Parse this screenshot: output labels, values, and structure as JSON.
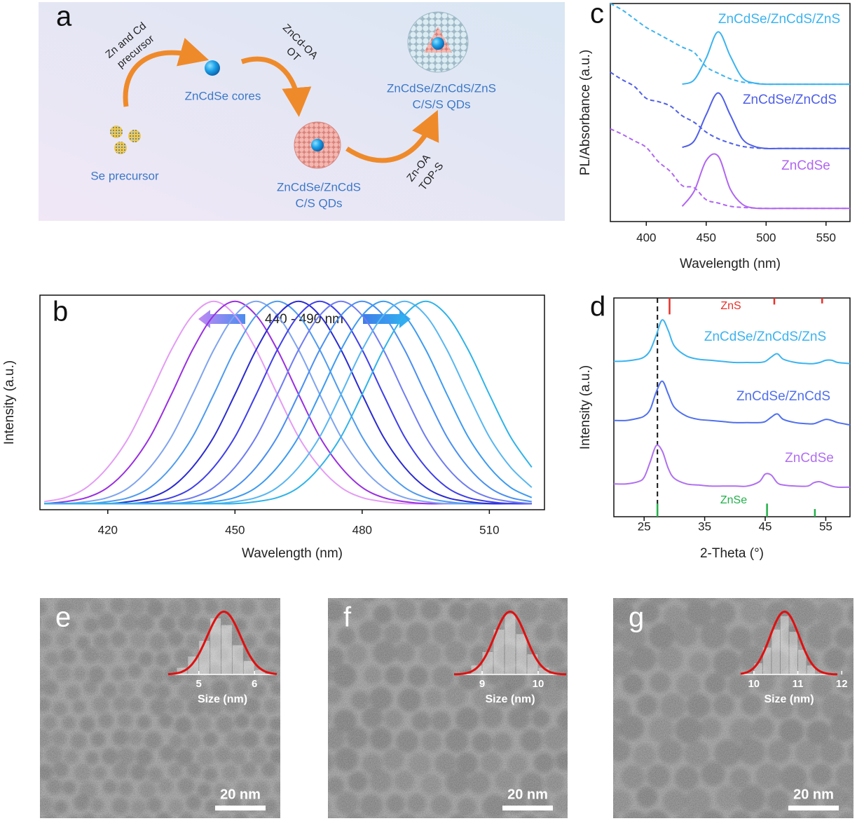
{
  "scheme": {
    "label": "a",
    "reagents": [
      [
        "Zn and Cd",
        "precursor"
      ],
      [
        "ZnCd-OA",
        "OT"
      ],
      [
        "Zn-OA",
        "TOP-S"
      ]
    ],
    "products": [
      [
        "Se precursor"
      ],
      [
        "ZnCdSe cores"
      ],
      [
        "ZnCdSe/ZnCdS",
        "C/S QDs"
      ],
      [
        "ZnCdSe/ZnCdS/ZnS",
        "C/S/S QDs"
      ]
    ]
  },
  "chart_data": [
    {
      "type": "line",
      "label": "b",
      "annotation": "440 - 490 nm",
      "xlabel": "Wavelength (nm)",
      "ylabel": "Intensity (a.u.)",
      "x": [
        405,
        410,
        415,
        420,
        425,
        430,
        435,
        440,
        445,
        450,
        455,
        460,
        465,
        470,
        475,
        480,
        485,
        490,
        495,
        500,
        505,
        510,
        515,
        520
      ],
      "xlim": [
        404,
        523
      ],
      "xticks": [
        420,
        450,
        480,
        510
      ],
      "ylim": [
        -0.03,
        1.03
      ],
      "series": [
        {
          "color": "#e49cf4",
          "values": [
            0.01,
            0.03,
            0.08,
            0.18,
            0.33,
            0.54,
            0.76,
            0.93,
            1,
            0.93,
            0.76,
            0.54,
            0.33,
            0.18,
            0.08,
            0.03,
            0.01,
            0,
            0,
            0,
            0,
            0,
            0,
            0
          ]
        },
        {
          "color": "#9a2fe0",
          "values": [
            0,
            0.01,
            0.03,
            0.08,
            0.18,
            0.33,
            0.54,
            0.76,
            0.93,
            1,
            0.93,
            0.76,
            0.54,
            0.33,
            0.18,
            0.08,
            0.03,
            0.01,
            0,
            0,
            0,
            0,
            0,
            0
          ]
        },
        {
          "color": "#7fa4ee",
          "values": [
            0,
            0,
            0.01,
            0.03,
            0.08,
            0.18,
            0.33,
            0.54,
            0.76,
            0.93,
            1,
            0.93,
            0.76,
            0.54,
            0.33,
            0.18,
            0.08,
            0.03,
            0.01,
            0,
            0,
            0,
            0,
            0
          ]
        },
        {
          "color": "#4f9bee",
          "values": [
            0,
            0,
            0,
            0.01,
            0.03,
            0.08,
            0.18,
            0.33,
            0.54,
            0.76,
            0.93,
            1,
            0.93,
            0.76,
            0.54,
            0.33,
            0.18,
            0.08,
            0.03,
            0.01,
            0,
            0,
            0,
            0
          ]
        },
        {
          "color": "#2b2bd0",
          "values": [
            0,
            0,
            0,
            0,
            0.01,
            0.03,
            0.08,
            0.18,
            0.33,
            0.54,
            0.76,
            0.93,
            1,
            0.93,
            0.76,
            0.54,
            0.33,
            0.18,
            0.08,
            0.03,
            0.01,
            0,
            0,
            0
          ]
        },
        {
          "color": "#3f3fe8",
          "values": [
            0,
            0,
            0,
            0,
            0,
            0.01,
            0.03,
            0.08,
            0.18,
            0.33,
            0.54,
            0.76,
            0.93,
            1,
            0.93,
            0.76,
            0.54,
            0.33,
            0.18,
            0.08,
            0.03,
            0.01,
            0,
            0
          ]
        },
        {
          "color": "#6e7cf0",
          "values": [
            0,
            0,
            0,
            0,
            0,
            0,
            0.01,
            0.03,
            0.08,
            0.18,
            0.33,
            0.54,
            0.76,
            0.93,
            1,
            0.93,
            0.76,
            0.54,
            0.33,
            0.18,
            0.08,
            0.03,
            0.01,
            0
          ]
        },
        {
          "color": "#4a8ff0",
          "values": [
            0,
            0,
            0,
            0,
            0,
            0,
            0,
            0.01,
            0.03,
            0.08,
            0.18,
            0.33,
            0.54,
            0.76,
            0.93,
            1,
            0.93,
            0.76,
            0.54,
            0.33,
            0.18,
            0.08,
            0.03,
            0.01
          ]
        },
        {
          "color": "#3d9bf0",
          "values": [
            0,
            0,
            0,
            0,
            0,
            0,
            0,
            0,
            0.01,
            0.03,
            0.08,
            0.18,
            0.33,
            0.54,
            0.76,
            0.93,
            1,
            0.93,
            0.76,
            0.54,
            0.33,
            0.18,
            0.08,
            0.03
          ]
        },
        {
          "color": "#58b6f0",
          "values": [
            0,
            0,
            0,
            0,
            0,
            0,
            0,
            0,
            0,
            0.01,
            0.03,
            0.08,
            0.18,
            0.33,
            0.54,
            0.76,
            0.93,
            1,
            0.93,
            0.76,
            0.54,
            0.33,
            0.18,
            0.08
          ]
        },
        {
          "color": "#2fb3e8",
          "values": [
            0,
            0,
            0,
            0,
            0,
            0,
            0,
            0,
            0,
            0,
            0.01,
            0.03,
            0.08,
            0.18,
            0.33,
            0.54,
            0.76,
            0.93,
            1,
            0.93,
            0.76,
            0.54,
            0.33,
            0.18
          ]
        }
      ]
    },
    {
      "type": "line",
      "label": "c",
      "xlabel": "Wavelength (nm)",
      "ylabel": "PL/Absorbance (a.u.)",
      "x": [
        370,
        380,
        390,
        400,
        410,
        420,
        430,
        440,
        450,
        460,
        470,
        480,
        490,
        500,
        510,
        520,
        530,
        540,
        550,
        560,
        570
      ],
      "xlim": [
        370,
        570
      ],
      "xticks": [
        400,
        450,
        500,
        550
      ],
      "ylim": [
        0,
        10
      ],
      "series": [
        {
          "name": "ZnCdSe/ZnCdS/ZnS",
          "color": "#3cb4ef",
          "values": [
            null,
            null,
            null,
            null,
            null,
            null,
            6.3,
            6.5,
            7.5,
            8.7,
            7.6,
            6.6,
            6.35,
            6.3,
            6.3,
            6.3,
            6.3,
            6.3,
            6.3,
            6.3,
            6.3
          ],
          "absorbance": [
            10,
            9.7,
            9.3,
            8.9,
            8.6,
            8.3,
            8.0,
            7.75,
            7.1,
            6.8,
            6.55,
            6.4,
            6.35,
            6.3,
            6.3,
            6.3,
            6.3,
            6.3,
            6.3,
            6.3,
            6.3
          ]
        },
        {
          "name": "ZnCdSe/ZnCdS",
          "color": "#5060e8",
          "values": [
            null,
            null,
            null,
            null,
            null,
            null,
            3.4,
            3.7,
            4.9,
            5.9,
            4.9,
            3.8,
            3.45,
            3.35,
            3.35,
            3.35,
            3.35,
            3.35,
            3.35,
            3.35,
            3.35
          ],
          "absorbance": [
            6.85,
            6.5,
            6.2,
            5.65,
            5.5,
            5.3,
            4.85,
            4.55,
            4.1,
            3.8,
            3.6,
            3.45,
            3.38,
            3.35,
            3.35,
            3.35,
            3.35,
            3.35,
            3.35,
            3.35,
            3.35
          ]
        },
        {
          "name": "ZnCdSe",
          "color": "#b066f0",
          "values": [
            null,
            null,
            null,
            null,
            null,
            null,
            0.7,
            1.4,
            2.8,
            3.0,
            1.5,
            0.8,
            0.62,
            0.6,
            0.6,
            0.6,
            0.6,
            0.6,
            0.6,
            0.6,
            0.6
          ],
          "absorbance": [
            4.25,
            4.0,
            3.7,
            3.4,
            2.75,
            2.3,
            1.65,
            1.55,
            1.0,
            0.85,
            0.7,
            0.65,
            0.62,
            0.6,
            0.6,
            0.6,
            0.6,
            0.6,
            0.6,
            0.6,
            0.6
          ]
        }
      ]
    },
    {
      "type": "line",
      "label": "d",
      "xlabel": "2-Theta (°)",
      "ylabel": "Intensity (a.u.)",
      "x": [
        20,
        22,
        24,
        25,
        26,
        27,
        28,
        29,
        30,
        32,
        34,
        36,
        38,
        40,
        42,
        44,
        45,
        46,
        47,
        48,
        50,
        52,
        53,
        54,
        55,
        56,
        57,
        59
      ],
      "xlim": [
        20,
        59
      ],
      "xticks": [
        25,
        35,
        45,
        55
      ],
      "ylim": [
        0,
        10
      ],
      "series": [
        {
          "name": "ZnCdSe/ZnCdS/ZnS",
          "color": "#3cb4ef",
          "values": [
            7.1,
            7.12,
            7.2,
            7.3,
            7.6,
            8.3,
            9.0,
            8.5,
            7.8,
            7.35,
            7.2,
            7.15,
            7.1,
            7.05,
            7.05,
            7.05,
            7.1,
            7.3,
            7.45,
            7.2,
            7.05,
            7.0,
            7.0,
            7.05,
            7.15,
            7.15,
            7.05,
            7.0
          ]
        },
        {
          "name": "ZnCdSe/ZnCdS",
          "color": "#5070ee",
          "values": [
            4.4,
            4.4,
            4.5,
            4.6,
            4.9,
            5.7,
            6.2,
            5.6,
            5.0,
            4.6,
            4.45,
            4.4,
            4.35,
            4.3,
            4.3,
            4.3,
            4.35,
            4.55,
            4.7,
            4.45,
            4.3,
            4.25,
            4.25,
            4.35,
            4.45,
            4.4,
            4.3,
            4.2
          ]
        },
        {
          "name": "ZnCdSe",
          "color": "#b070f0",
          "values": [
            1.5,
            1.5,
            1.6,
            1.8,
            2.5,
            3.25,
            3.0,
            2.2,
            1.75,
            1.5,
            1.45,
            1.4,
            1.4,
            1.4,
            1.4,
            1.6,
            1.95,
            1.9,
            1.55,
            1.45,
            1.4,
            1.4,
            1.55,
            1.6,
            1.5,
            1.4,
            1.35,
            1.35
          ]
        }
      ],
      "references": [
        {
          "name": "ZnS",
          "color": "#e8302a",
          "positions": [
            29.2,
            46.5,
            54.4
          ],
          "heights": [
            0.75,
            0.3,
            0.25
          ]
        },
        {
          "name": "ZnSe",
          "color": "#22b04a",
          "positions": [
            27.2,
            45.3,
            53.2
          ],
          "heights": [
            0.6,
            0.6,
            0.35
          ]
        }
      ],
      "reference_line": 27.2
    },
    {
      "type": "histogram",
      "xlabel": "Size (nm)",
      "color": "#ffffff",
      "bins": [
        4.6,
        4.8,
        5.0,
        5.2,
        5.4,
        5.6,
        5.8,
        6.0,
        6.2
      ],
      "counts": [
        3,
        8,
        15,
        25,
        22,
        13,
        6,
        2
      ],
      "xlim": [
        4.45,
        6.4
      ],
      "xticks": [
        5,
        6
      ],
      "ylim": [
        0,
        30
      ],
      "fit": {
        "mean": 5.45,
        "sd": 0.3,
        "peak": 28,
        "color": "#e01010"
      }
    },
    {
      "type": "histogram",
      "xlabel": "Size (nm)",
      "color": "#ffffff",
      "bins": [
        8.8,
        9.0,
        9.2,
        9.4,
        9.6,
        9.8,
        10.0,
        10.2
      ],
      "counts": [
        4,
        10,
        20,
        27,
        18,
        9,
        3
      ],
      "xlim": [
        8.5,
        10.5
      ],
      "xticks": [
        9,
        10
      ],
      "ylim": [
        0,
        30
      ],
      "fit": {
        "mean": 9.5,
        "sd": 0.28,
        "peak": 28,
        "color": "#e01010"
      }
    },
    {
      "type": "histogram",
      "xlabel": "Size (nm)",
      "color": "#ffffff",
      "bins": [
        10.0,
        10.2,
        10.4,
        10.6,
        10.8,
        11.0,
        11.2,
        11.4
      ],
      "counts": [
        5,
        12,
        20,
        26,
        19,
        11,
        4
      ],
      "xlim": [
        9.7,
        11.9
      ],
      "xticks": [
        10,
        11,
        12
      ],
      "ylim": [
        0,
        30
      ],
      "fit": {
        "mean": 10.7,
        "sd": 0.33,
        "peak": 28,
        "color": "#e01010"
      }
    }
  ],
  "images": [
    {
      "label": "e",
      "scale_bar": "20 nm"
    },
    {
      "label": "f",
      "scale_bar": "20 nm"
    },
    {
      "label": "g",
      "scale_bar": "20 nm"
    }
  ]
}
